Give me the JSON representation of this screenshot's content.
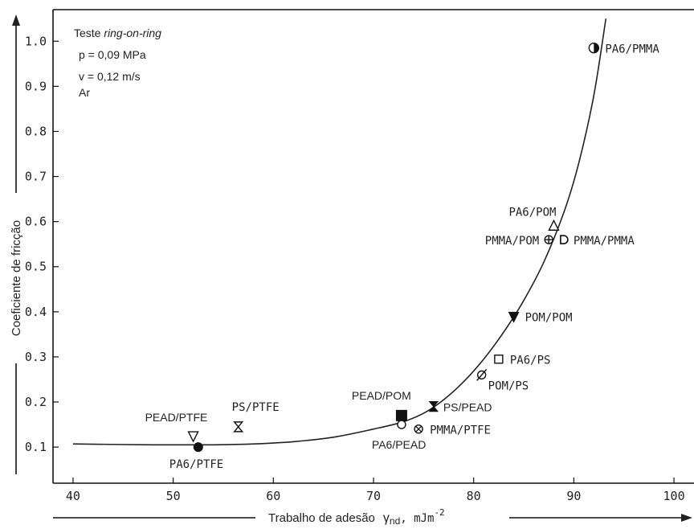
{
  "chart_data": {
    "type": "scatter",
    "xlabel": "Trabalho de adesão",
    "xlabel_symbol": "γ",
    "xlabel_sub": "nd",
    "xlabel_unit": ", mJm",
    "xlabel_exp": "-2",
    "ylabel": "Coeficiente de fricção",
    "xlim": [
      38,
      102
    ],
    "ylim": [
      0.02,
      1.07
    ],
    "xticks": [
      40,
      50,
      60,
      70,
      80,
      90,
      100
    ],
    "yticks": [
      0.1,
      0.2,
      0.3,
      0.4,
      0.5,
      0.6,
      0.7,
      0.8,
      0.9,
      1.0
    ],
    "xtick_labels": [
      "40",
      "50",
      "60",
      "70",
      "80",
      "90",
      "100"
    ],
    "ytick_labels": [
      "0.1",
      "0.2",
      "0.3",
      "0.4",
      "0.5",
      "0.6",
      "0.7",
      "0.8",
      "0.9",
      "1.0"
    ],
    "annotation": {
      "line1_prefix": "Teste ",
      "line1_italic": "ring-on-ring",
      "line2": "p = 0,09 MPa",
      "line3": "v = 0,12 m/s",
      "line4": "Ar"
    },
    "points": [
      {
        "label": "PA6/PMMA",
        "x": 92.0,
        "y": 0.985,
        "marker": "half-circle"
      },
      {
        "label": "PA6/POM",
        "x": 88.0,
        "y": 0.59,
        "marker": "triangle-up-open"
      },
      {
        "label": "PMMA/POM",
        "x": 87.5,
        "y": 0.56,
        "marker": "circle-plus"
      },
      {
        "label": "PMMA/PMMA",
        "x": 89.0,
        "y": 0.56,
        "marker": "d-shape"
      },
      {
        "label": "POM/POM",
        "x": 84.0,
        "y": 0.39,
        "marker": "triangle-down-filled"
      },
      {
        "label": "PA6/PS",
        "x": 82.5,
        "y": 0.295,
        "marker": "square-open"
      },
      {
        "label": "POM/PS",
        "x": 80.8,
        "y": 0.26,
        "marker": "circle-slash"
      },
      {
        "label": "PS/PEAD",
        "x": 76.0,
        "y": 0.19,
        "marker": "hourglass-filled"
      },
      {
        "label": "PEAD/POM",
        "x": 72.8,
        "y": 0.17,
        "marker": "square-filled"
      },
      {
        "label": "PA6/PEAD",
        "x": 72.8,
        "y": 0.15,
        "marker": "circle-open"
      },
      {
        "label": "PMMA/PTFE",
        "x": 74.5,
        "y": 0.14,
        "marker": "circle-x"
      },
      {
        "label": "PS/PTFE",
        "x": 56.5,
        "y": 0.145,
        "marker": "hourglass-open"
      },
      {
        "label": "PEAD/PTFE",
        "x": 52.0,
        "y": 0.125,
        "marker": "triangle-down-open"
      },
      {
        "label": "PA6/PTFE",
        "x": 52.5,
        "y": 0.1,
        "marker": "circle-filled"
      }
    ],
    "curve": {
      "x": [
        40,
        48,
        54,
        58,
        62,
        66,
        70,
        72.8,
        75,
        77,
        79,
        81,
        83,
        85,
        87,
        89,
        90.5,
        92,
        93.2
      ],
      "y": [
        0.107,
        0.105,
        0.105,
        0.107,
        0.112,
        0.122,
        0.14,
        0.155,
        0.175,
        0.205,
        0.245,
        0.295,
        0.355,
        0.425,
        0.51,
        0.62,
        0.73,
        0.88,
        1.05
      ]
    }
  }
}
